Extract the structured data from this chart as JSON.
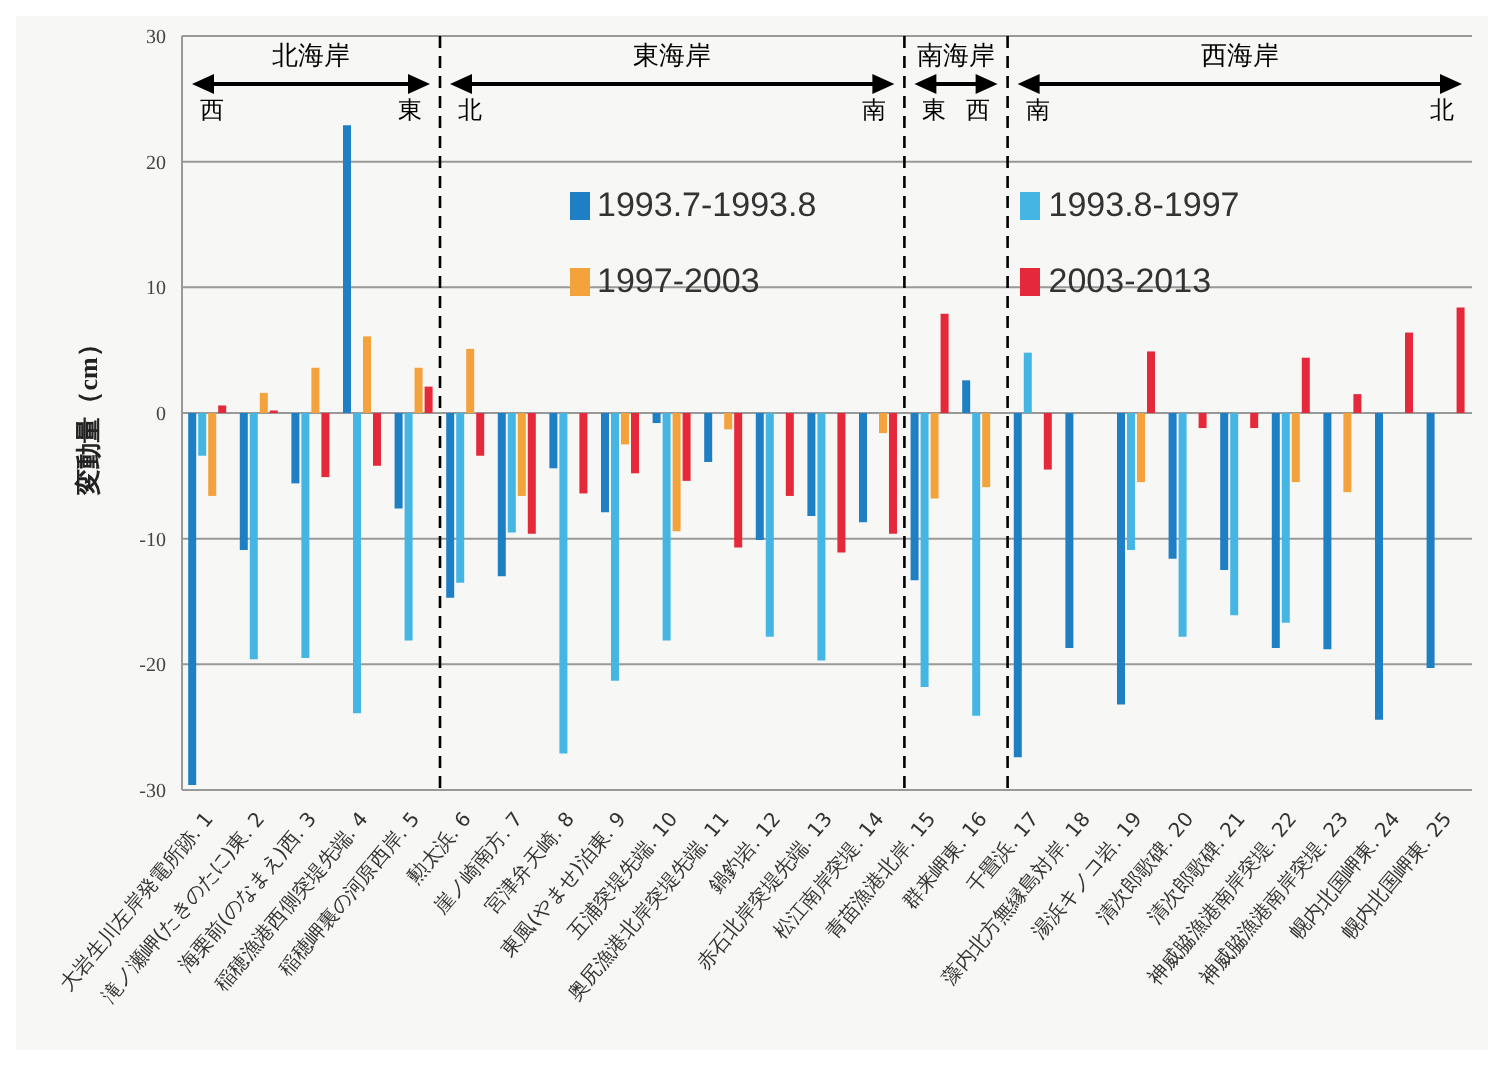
{
  "chart_data": {
    "type": "bar",
    "ylabel": "変動量（cm）",
    "categories": [
      "大岩生川左岸発電所跡. 1",
      "滝ノ瀬岬(たきのたに)東. 2",
      "海栗前(のなまえ)西. 3",
      "稲穂漁港西側突堤先端. 4",
      "稲穂岬裏の河原西岸. 5",
      "勲太浜. 6",
      "崖ノ崎南方. 7",
      "宮津弁天崎. 8",
      "東風(やませ)泊東. 9",
      "五浦突堤先端. 10",
      "奥尻漁港北岸突堤先端. 11",
      "鍋釣岩. 12",
      "赤石北岸突堤先端. 13",
      "松江南岸突堤. 14",
      "青苗漁港北岸. 15",
      "群来岬東. 16",
      "千畳浜. 17",
      "藻内北方無縁島対岸. 18",
      "湯浜キノコ岩. 19",
      "清次郎歌碑. 20",
      "清次郎歌碑. 21",
      "神威脇漁港南岸突堤. 22",
      "神威脇漁港南岸突堤. 23",
      "幌内北国岬東. 24",
      "幌内北国岬東. 25"
    ],
    "series": [
      {
        "name": "1993.7-1993.8",
        "color": "#1f7fc4",
        "values": [
          -29.6,
          -10.9,
          -5.6,
          22.9,
          -7.6,
          -14.7,
          -13,
          -4.4,
          -7.9,
          -0.8,
          -3.9,
          -10.1,
          -8.2,
          -8.7,
          -13.3,
          2.6,
          -27.4,
          -18.7,
          -23.2,
          -11.6,
          -12.5,
          -18.7,
          -18.8,
          -24.4,
          -20.3
        ]
      },
      {
        "name": "1993.8-1997",
        "color": "#45b6e4",
        "values": [
          -3.4,
          -19.6,
          -19.5,
          -23.9,
          -18.1,
          -13.5,
          -9.5,
          -27.1,
          -21.3,
          -18.1,
          null,
          -17.8,
          -19.7,
          null,
          -21.8,
          -24.1,
          4.8,
          null,
          -10.9,
          -17.8,
          -16.1,
          -16.7,
          null,
          null,
          null
        ]
      },
      {
        "name": "1997-2003",
        "color": "#f4a23c",
        "values": [
          -6.6,
          1.6,
          3.6,
          6.1,
          3.6,
          5.1,
          -6.6,
          null,
          -2.5,
          -9.4,
          -1.3,
          null,
          null,
          -1.6,
          -6.8,
          -5.9,
          null,
          null,
          -5.5,
          null,
          null,
          -5.5,
          -6.3,
          null,
          null
        ]
      },
      {
        "name": "2003-2013",
        "color": "#e5283a",
        "values": [
          0.6,
          0.2,
          -5.1,
          -4.2,
          2.1,
          -3.4,
          -9.6,
          -6.4,
          -4.8,
          -5.4,
          -10.7,
          -6.6,
          -11.1,
          -9.6,
          7.9,
          null,
          -4.5,
          null,
          4.9,
          -1.2,
          -1.2,
          4.4,
          1.5,
          6.4,
          8.4
        ]
      }
    ],
    "ylim": [
      -30,
      30
    ],
    "yticks": [
      -30,
      -20,
      -10,
      0,
      10,
      20,
      30
    ],
    "grid": "y",
    "legend": "top",
    "annotations": [
      "北海岸",
      "西",
      "東",
      "東海岸",
      "北",
      "南",
      "南海岸",
      "東",
      "西",
      "西海岸",
      "南",
      "北"
    ]
  }
}
